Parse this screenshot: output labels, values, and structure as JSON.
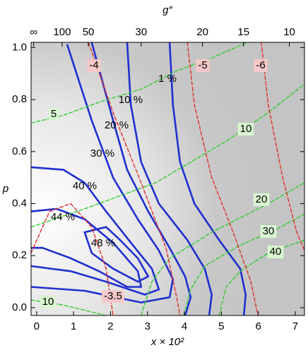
{
  "chart_data": {
    "type": "contour",
    "xlabel": "x × 10²",
    "ylabel": "p",
    "x2label": "g″",
    "xlim": [
      -0.15,
      7.25
    ],
    "ylim": [
      -0.03,
      1.02
    ],
    "xticks": [
      0,
      1,
      2,
      3,
      4,
      5,
      6,
      7
    ],
    "yticks": [
      {
        "value": 0,
        "label": "0.0"
      },
      {
        "value": 0.2,
        "label": "0.2"
      },
      {
        "value": 0.4,
        "label": "0.4"
      },
      {
        "value": 0.6,
        "label": "0.6"
      },
      {
        "value": 0.8,
        "label": "0.8"
      },
      {
        "value": 1,
        "label": "1.0"
      }
    ],
    "x2ticks": [
      {
        "value": -0.08,
        "label": "∞"
      },
      100,
      50,
      30,
      20,
      15,
      10
    ],
    "x2tick_positions": [
      -0.08,
      0.69,
      1.4,
      2.83,
      4.49,
      5.6,
      6.84
    ],
    "series": [
      {
        "name": "1 %",
        "color": "#1f2fd0",
        "dashed": false,
        "x": [
          3.6,
          3.69,
          3.88,
          4.27,
          4.94,
          5.51,
          5.66,
          5.61
        ],
        "values": [
          1.02,
          0.78,
          0.56,
          0.4,
          0.26,
          0.15,
          0.05,
          -0.03
        ]
      },
      {
        "name": "10 %",
        "color": "#1f2fd0",
        "dashed": false,
        "x": [
          2.45,
          2.55,
          2.83,
          3.31,
          4.08,
          4.55,
          4.74,
          4.67
        ],
        "values": [
          1.02,
          0.78,
          0.56,
          0.4,
          0.26,
          0.15,
          0.05,
          -0.03
        ]
      },
      {
        "name": "20 %",
        "color": "#1f2fd0",
        "dashed": false,
        "x": [
          1.49,
          2.07,
          2.45,
          3.02,
          3.6,
          4.02,
          4.17,
          4.02
        ],
        "values": [
          1.02,
          0.72,
          0.53,
          0.37,
          0.23,
          0.12,
          0.04,
          -0.03
        ]
      },
      {
        "name": "30 %",
        "color": "#1f2fd0",
        "dashed": false,
        "x": [
          0.83,
          1.49,
          2.07,
          2.74,
          3.31,
          3.69,
          3.6,
          2.83,
          1.3,
          -0.15
        ],
        "values": [
          1.01,
          0.72,
          0.5,
          0.34,
          0.22,
          0.11,
          0.04,
          0.02,
          0.065,
          0.08
        ]
      },
      {
        "name": "40 %",
        "color": "#1f2fd0",
        "dashed": false,
        "x": [
          -0.15,
          0.73,
          1.3,
          1.88,
          2.55,
          3.12,
          3.31,
          2.93,
          1.88,
          0.92,
          -0.15
        ],
        "values": [
          0.54,
          0.53,
          0.48,
          0.37,
          0.25,
          0.15,
          0.07,
          0.05,
          0.1,
          0.14,
          0.16
        ]
      },
      {
        "name": "44 %",
        "color": "#1f2fd0",
        "dashed": false,
        "x": [
          -0.15,
          0.54,
          1.3,
          2.07,
          2.74,
          2.83,
          2.45,
          1.69,
          0.92,
          0.16,
          -0.15
        ],
        "values": [
          0.37,
          0.38,
          0.34,
          0.25,
          0.14,
          0.08,
          0.08,
          0.14,
          0.19,
          0.23,
          0.23
        ]
      },
      {
        "name": "48 %",
        "color": "#1f2fd0",
        "dashed": false,
        "x": [
          1.3,
          1.88,
          2.26,
          2.74,
          3.02,
          2.74,
          2.07,
          1.49,
          1.3
        ],
        "values": [
          0.29,
          0.31,
          0.26,
          0.19,
          0.12,
          0.1,
          0.15,
          0.21,
          0.29
        ]
      },
      {
        "name": "5",
        "color": "#33cc33",
        "dashed": true,
        "x": [
          -0.15,
          0.73,
          1.69,
          2.83,
          3.79,
          4.74,
          5.7
        ],
        "values": [
          0.71,
          0.74,
          0.79,
          0.84,
          0.91,
          0.96,
          1.02
        ]
      },
      {
        "name": "10",
        "color": "#33cc33",
        "dashed": true,
        "x": [
          -0.15,
          1.3,
          3.22,
          5.13,
          6.27,
          7.25
        ],
        "values": [
          0.31,
          0.38,
          0.48,
          0.64,
          0.75,
          0.86
        ]
      },
      {
        "name": "20",
        "color": "#33cc33",
        "dashed": true,
        "x": [
          2.83,
          3.12,
          3.6,
          4.74,
          6.27,
          7.25
        ],
        "values": [
          -0.03,
          0.1,
          0.19,
          0.29,
          0.4,
          0.48
        ]
      },
      {
        "name": "30",
        "color": "#33cc33",
        "dashed": true,
        "x": [
          3.98,
          4.17,
          4.55,
          5.51,
          6.47,
          7.25
        ],
        "values": [
          -0.03,
          0.07,
          0.16,
          0.24,
          0.3,
          0.36
        ]
      },
      {
        "name": "40",
        "color": "#33cc33",
        "dashed": true,
        "x": [
          4.94,
          5.13,
          5.51,
          6.27,
          7.25
        ],
        "values": [
          -0.03,
          0.08,
          0.14,
          0.21,
          0.26
        ]
      },
      {
        "name": "10",
        "color": "#33cc33",
        "dashed": true,
        "x": [
          -0.15,
          0.73,
          1.88
        ],
        "values": [
          0.03,
          0.01,
          -0.03
        ]
      },
      {
        "name": "-4",
        "color": "#e0302a",
        "dashed": true,
        "x": [
          1.4,
          2.07,
          2.83,
          3.5,
          3.79,
          3.88
        ],
        "values": [
          1.02,
          0.75,
          0.48,
          0.23,
          0.04,
          -0.03
        ]
      },
      {
        "name": "-5",
        "color": "#e0302a",
        "dashed": true,
        "x": [
          4.08,
          4.27,
          4.74,
          5.32,
          5.8,
          5.99
        ],
        "values": [
          1.02,
          0.78,
          0.5,
          0.29,
          0.1,
          -0.03
        ]
      },
      {
        "name": "-6",
        "color": "#e0302a",
        "dashed": true,
        "x": [
          6.08,
          6.27,
          6.66,
          7.04,
          7.25
        ],
        "values": [
          1.02,
          0.78,
          0.5,
          0.29,
          0.22
        ]
      },
      {
        "name": "-3.5",
        "color": "#e0302a",
        "dashed": true,
        "x": [
          -0.15,
          0.35,
          0.92,
          1.49,
          1.88,
          2.07
        ],
        "values": [
          0.21,
          0.37,
          0.4,
          0.31,
          0.15,
          -0.03
        ]
      }
    ]
  }
}
